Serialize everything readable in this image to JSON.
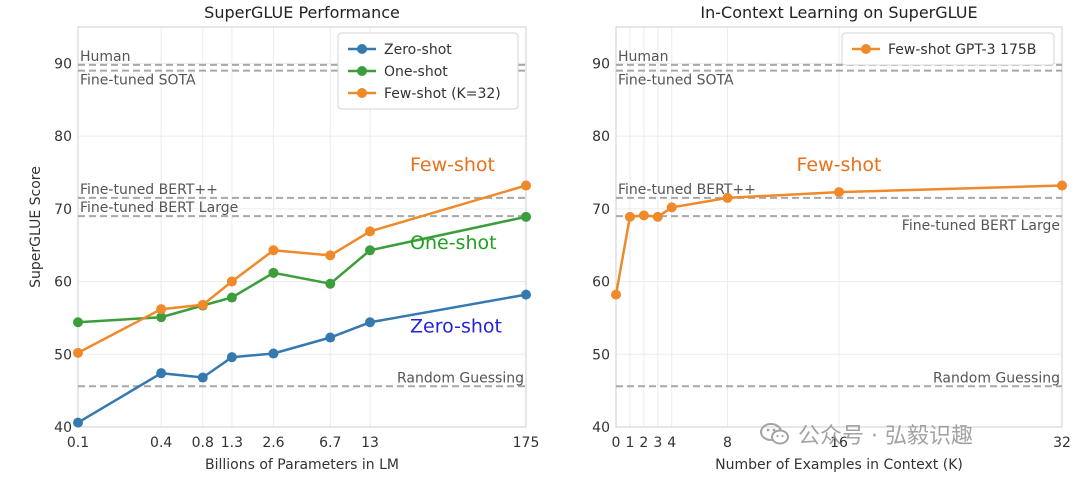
{
  "colors": {
    "zero": "#3579b1",
    "one": "#3b9e3b",
    "few": "#f0892a",
    "ref_line": "#a8a8a8",
    "grid": "#ececec",
    "zero_annot": "#2323d8",
    "one_annot": "#1fa01f",
    "few_annot": "#e8711c"
  },
  "watermark": {
    "text": "公众号 · 弘毅识趣",
    "icon": "wechat-icon"
  },
  "chart_data": [
    {
      "type": "line",
      "title": "SuperGLUE Performance",
      "xlabel": "Billions of Parameters in LM",
      "ylabel": "SuperGLUE Score",
      "x_scale": "log",
      "ylim": [
        40,
        95
      ],
      "yticks": [
        40,
        50,
        60,
        70,
        80,
        90
      ],
      "x": [
        0.1,
        0.4,
        0.8,
        1.3,
        2.6,
        6.7,
        13,
        175
      ],
      "xtick_labels": [
        "0.1",
        "0.4",
        "0.8",
        "1.3",
        "2.6",
        "6.7",
        "13",
        "175"
      ],
      "series": [
        {
          "name": "Zero-shot",
          "color_key": "zero",
          "values": [
            40.6,
            47.4,
            46.8,
            49.6,
            50.1,
            52.3,
            54.4,
            58.2
          ]
        },
        {
          "name": "One-shot",
          "color_key": "one",
          "values": [
            54.4,
            55.1,
            56.7,
            57.8,
            61.2,
            59.7,
            64.3,
            68.9
          ]
        },
        {
          "name": "Few-shot (K=32)",
          "color_key": "few",
          "values": [
            50.2,
            56.2,
            56.8,
            60.0,
            64.3,
            63.6,
            66.9,
            73.2
          ]
        }
      ],
      "reference_lines": [
        {
          "label": "Human",
          "value": 89.8,
          "label_pos": "above"
        },
        {
          "label": "Fine-tuned SOTA",
          "value": 89.0,
          "label_pos": "below"
        },
        {
          "label": "Fine-tuned BERT++",
          "value": 71.5,
          "label_pos": "above"
        },
        {
          "label": "Fine-tuned BERT Large",
          "value": 69.0,
          "label_pos": "above"
        },
        {
          "label": "Random Guessing",
          "value": 45.6,
          "label_pos": "above-right"
        }
      ],
      "annotations": [
        {
          "text": "Few-shot",
          "color_key": "few_annot",
          "x": 13,
          "y": 75.2
        },
        {
          "text": "One-shot",
          "color_key": "one_annot",
          "x": 13,
          "y": 64.5
        },
        {
          "text": "Zero-shot",
          "color_key": "zero_annot",
          "x": 13,
          "y": 53.0
        }
      ],
      "legend": "top-right"
    },
    {
      "type": "line",
      "title": "In-Context Learning on SuperGLUE",
      "xlabel": "Number of Examples in Context (K)",
      "ylabel": "",
      "x_scale": "linear",
      "xlim": [
        0,
        32
      ],
      "ylim": [
        40,
        95
      ],
      "yticks": [
        40,
        50,
        60,
        70,
        80,
        90
      ],
      "x": [
        0,
        1,
        2,
        3,
        4,
        8,
        16,
        32
      ],
      "xtick_labels": [
        "0",
        "1",
        "2",
        "3",
        "4",
        "8",
        "16",
        "32"
      ],
      "series": [
        {
          "name": "Few-shot GPT-3 175B",
          "color_key": "few",
          "values": [
            58.2,
            68.9,
            69.1,
            68.9,
            70.2,
            71.5,
            72.3,
            73.2
          ]
        }
      ],
      "reference_lines": [
        {
          "label": "Human",
          "value": 89.8,
          "label_pos": "above"
        },
        {
          "label": "Fine-tuned SOTA",
          "value": 89.0,
          "label_pos": "below"
        },
        {
          "label": "Fine-tuned BERT++",
          "value": 71.5,
          "label_pos": "above"
        },
        {
          "label": "Fine-tuned BERT Large",
          "value": 69.0,
          "label_pos": "below-right"
        },
        {
          "label": "Random Guessing",
          "value": 45.6,
          "label_pos": "above-right"
        }
      ],
      "annotations": [
        {
          "text": "Few-shot",
          "color_key": "few_annot",
          "x": 16,
          "y": 75.2
        }
      ],
      "legend": "top-right"
    }
  ]
}
